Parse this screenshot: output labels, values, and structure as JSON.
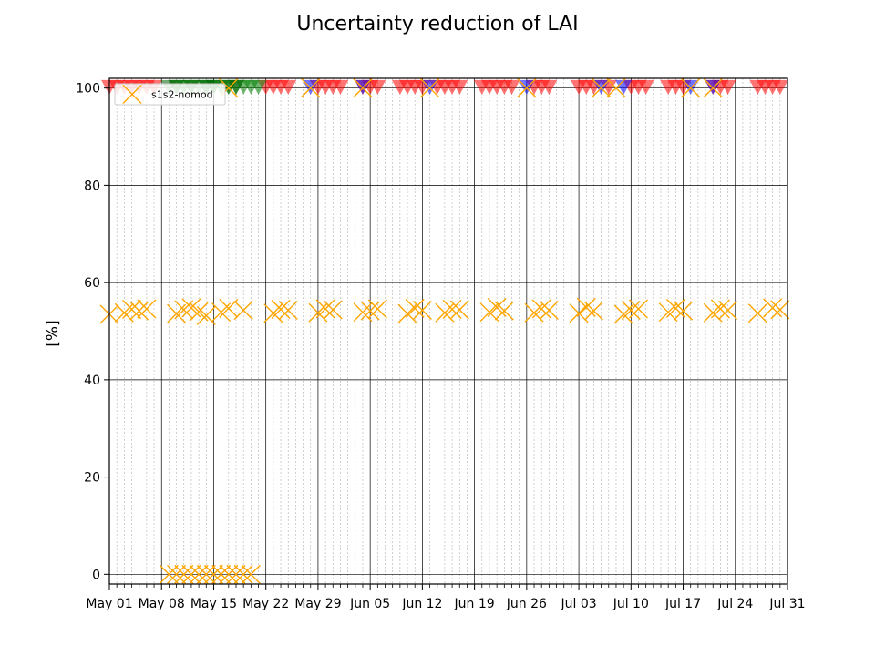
{
  "chart_data": {
    "type": "scatter",
    "title": "Uncertainty reduction of LAI",
    "ylabel": "[%]",
    "xlabel": "",
    "ylim": [
      -2,
      102
    ],
    "xlim": [
      "2018-05-01",
      "2018-07-31"
    ],
    "yticks": [
      0,
      20,
      40,
      60,
      80,
      100
    ],
    "xticks": [
      "May 01",
      "May 08",
      "May 15",
      "May 22",
      "May 29",
      "Jun 05",
      "Jun 12",
      "Jun 19",
      "Jun 26",
      "Jul 03",
      "Jul 10",
      "Jul 17",
      "Jul 24",
      "Jul 31"
    ],
    "grid": "major solid, minor daily dashed",
    "legend": {
      "placement": "top-left",
      "entries": [
        "s1s2-nomod"
      ]
    },
    "colors": {
      "nomod": "#ffa500",
      "red": "#ff0000",
      "blue": "#0000ff",
      "green": "#008000",
      "darkgreen": "#006400"
    },
    "series": [
      {
        "name": "s1s2-nomod",
        "marker": "x",
        "color": "#ffa500",
        "points": [
          [
            "2018-05-01",
            53.5
          ],
          [
            "2018-05-03",
            53.8
          ],
          [
            "2018-05-04",
            54.5
          ],
          [
            "2018-05-05",
            54.2
          ],
          [
            "2018-05-06",
            54.6
          ],
          [
            "2018-05-10",
            53.6
          ],
          [
            "2018-05-11",
            54.4
          ],
          [
            "2018-05-12",
            54.8
          ],
          [
            "2018-05-13",
            54.0
          ],
          [
            "2018-05-14",
            53.2
          ],
          [
            "2018-05-16",
            53.9
          ],
          [
            "2018-05-17",
            54.7
          ],
          [
            "2018-05-19",
            54.3
          ],
          [
            "2018-05-23",
            53.7
          ],
          [
            "2018-05-24",
            54.5
          ],
          [
            "2018-05-25",
            54.3
          ],
          [
            "2018-05-29",
            53.8
          ],
          [
            "2018-05-30",
            54.6
          ],
          [
            "2018-05-31",
            54.4
          ],
          [
            "2018-06-04",
            53.9
          ],
          [
            "2018-06-05",
            54.2
          ],
          [
            "2018-06-06",
            54.6
          ],
          [
            "2018-06-10",
            53.6
          ],
          [
            "2018-06-11",
            54.7
          ],
          [
            "2018-06-12",
            54.3
          ],
          [
            "2018-06-15",
            53.8
          ],
          [
            "2018-06-16",
            54.5
          ],
          [
            "2018-06-17",
            54.4
          ],
          [
            "2018-06-21",
            53.9
          ],
          [
            "2018-06-22",
            54.9
          ],
          [
            "2018-06-23",
            54.2
          ],
          [
            "2018-06-27",
            53.8
          ],
          [
            "2018-06-28",
            54.6
          ],
          [
            "2018-06-29",
            54.3
          ],
          [
            "2018-07-03",
            53.7
          ],
          [
            "2018-07-04",
            54.9
          ],
          [
            "2018-07-05",
            54.2
          ],
          [
            "2018-07-09",
            53.5
          ],
          [
            "2018-07-10",
            54.3
          ],
          [
            "2018-07-11",
            54.6
          ],
          [
            "2018-07-15",
            53.9
          ],
          [
            "2018-07-16",
            54.7
          ],
          [
            "2018-07-17",
            54.2
          ],
          [
            "2018-07-21",
            53.8
          ],
          [
            "2018-07-22",
            54.6
          ],
          [
            "2018-07-23",
            54.3
          ],
          [
            "2018-07-27",
            53.7
          ],
          [
            "2018-07-29",
            54.8
          ],
          [
            "2018-07-30",
            54.4
          ],
          [
            "2018-05-09",
            0.0
          ],
          [
            "2018-05-10",
            0.0
          ],
          [
            "2018-05-11",
            0.0
          ],
          [
            "2018-05-12",
            0.0
          ],
          [
            "2018-05-13",
            0.0
          ],
          [
            "2018-05-14",
            0.0
          ],
          [
            "2018-05-15",
            0.0
          ],
          [
            "2018-05-16",
            0.0
          ],
          [
            "2018-05-17",
            0.0
          ],
          [
            "2018-05-18",
            0.0
          ],
          [
            "2018-05-19",
            0.0
          ],
          [
            "2018-05-20",
            0.0
          ],
          [
            "2018-05-17",
            100.0
          ],
          [
            "2018-05-28",
            100.0
          ],
          [
            "2018-06-04",
            100.0
          ],
          [
            "2018-06-13",
            100.0
          ],
          [
            "2018-06-26",
            100.0
          ],
          [
            "2018-07-06",
            100.0
          ],
          [
            "2018-07-08",
            100.0
          ],
          [
            "2018-07-18",
            100.0
          ],
          [
            "2018-07-21",
            100.0
          ]
        ]
      },
      {
        "marker": "triangle-down",
        "color": "#ff0000",
        "points": [
          [
            "2018-05-01",
            100
          ],
          [
            "2018-05-02",
            100
          ],
          [
            "2018-05-03",
            100
          ],
          [
            "2018-05-04",
            100
          ],
          [
            "2018-05-05",
            100
          ],
          [
            "2018-05-06",
            100
          ],
          [
            "2018-05-07",
            100
          ],
          [
            "2018-05-22",
            100
          ],
          [
            "2018-05-23",
            100
          ],
          [
            "2018-05-24",
            100
          ],
          [
            "2018-05-25",
            100
          ],
          [
            "2018-05-29",
            100
          ],
          [
            "2018-05-30",
            100
          ],
          [
            "2018-05-31",
            100
          ],
          [
            "2018-06-01",
            100
          ],
          [
            "2018-06-04",
            100
          ],
          [
            "2018-06-05",
            100
          ],
          [
            "2018-06-06",
            100
          ],
          [
            "2018-06-09",
            100
          ],
          [
            "2018-06-10",
            100
          ],
          [
            "2018-06-11",
            100
          ],
          [
            "2018-06-12",
            100
          ],
          [
            "2018-06-14",
            100
          ],
          [
            "2018-06-15",
            100
          ],
          [
            "2018-06-16",
            100
          ],
          [
            "2018-06-17",
            100
          ],
          [
            "2018-06-20",
            100
          ],
          [
            "2018-06-21",
            100
          ],
          [
            "2018-06-22",
            100
          ],
          [
            "2018-06-23",
            100
          ],
          [
            "2018-06-24",
            100
          ],
          [
            "2018-06-27",
            100
          ],
          [
            "2018-06-28",
            100
          ],
          [
            "2018-06-29",
            100
          ],
          [
            "2018-07-03",
            100
          ],
          [
            "2018-07-04",
            100
          ],
          [
            "2018-07-05",
            100
          ],
          [
            "2018-07-07",
            100
          ],
          [
            "2018-07-10",
            100
          ],
          [
            "2018-07-11",
            100
          ],
          [
            "2018-07-12",
            100
          ],
          [
            "2018-07-15",
            100
          ],
          [
            "2018-07-16",
            100
          ],
          [
            "2018-07-17",
            100
          ],
          [
            "2018-07-21",
            100
          ],
          [
            "2018-07-22",
            100
          ],
          [
            "2018-07-23",
            100
          ],
          [
            "2018-07-27",
            100
          ],
          [
            "2018-07-28",
            100
          ],
          [
            "2018-07-29",
            100
          ],
          [
            "2018-07-30",
            100
          ]
        ]
      },
      {
        "marker": "triangle-down",
        "color": "#0000ff",
        "points": [
          [
            "2018-05-28",
            100
          ],
          [
            "2018-06-04",
            100
          ],
          [
            "2018-06-13",
            100
          ],
          [
            "2018-06-26",
            100
          ],
          [
            "2018-07-06",
            100
          ],
          [
            "2018-07-09",
            100
          ],
          [
            "2018-07-18",
            100
          ],
          [
            "2018-07-21",
            100
          ]
        ]
      },
      {
        "marker": "triangle-down",
        "color": "#008000",
        "points": [
          [
            "2018-05-10",
            100
          ],
          [
            "2018-05-11",
            100
          ],
          [
            "2018-05-12",
            100
          ],
          [
            "2018-05-13",
            100
          ],
          [
            "2018-05-14",
            100
          ],
          [
            "2018-05-15",
            100
          ],
          [
            "2018-05-16",
            100
          ],
          [
            "2018-05-17",
            100
          ],
          [
            "2018-05-18",
            100
          ],
          [
            "2018-05-19",
            100
          ],
          [
            "2018-05-20",
            100
          ],
          [
            "2018-05-21",
            100
          ]
        ]
      },
      {
        "marker": "triangle-down",
        "color": "#006400",
        "points": [
          [
            "2018-05-09",
            100
          ],
          [
            "2018-05-10",
            100
          ],
          [
            "2018-05-12",
            100
          ],
          [
            "2018-05-14",
            100
          ],
          [
            "2018-05-15",
            100
          ],
          [
            "2018-05-17",
            100
          ],
          [
            "2018-05-18",
            100
          ]
        ]
      }
    ]
  }
}
